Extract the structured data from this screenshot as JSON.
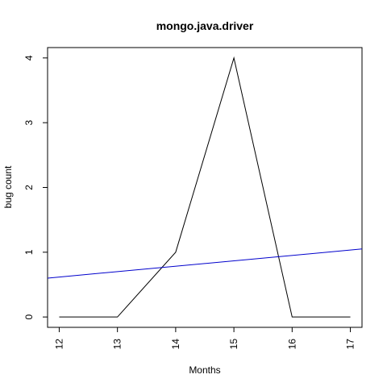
{
  "chart_data": {
    "type": "line",
    "title": "mongo.java.driver",
    "xlabel": "Months",
    "ylabel": "bug count",
    "x": [
      12,
      13,
      14,
      15,
      16,
      17
    ],
    "series": [
      {
        "values": [
          0,
          0,
          1,
          4,
          0,
          0
        ],
        "color": "#000000"
      }
    ],
    "trend_line": {
      "x_range": [
        11.8,
        17.2
      ],
      "y_values": [
        0.6,
        1.05
      ],
      "color": "#0000cc"
    },
    "x_ticks": [
      "12",
      "13",
      "14",
      "15",
      "16",
      "17"
    ],
    "y_ticks": [
      "0",
      "1",
      "2",
      "3",
      "4"
    ],
    "xlim": [
      11.8,
      17.2
    ],
    "ylim": [
      -0.16,
      4.16
    ],
    "grid": false
  }
}
